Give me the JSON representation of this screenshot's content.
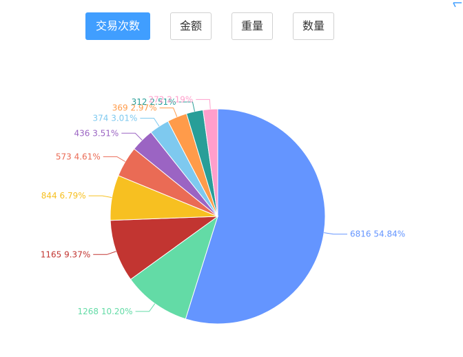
{
  "tabs": [
    {
      "label": "交易次数",
      "active": true
    },
    {
      "label": "金额",
      "active": false
    },
    {
      "label": "重量",
      "active": false
    },
    {
      "label": "数量",
      "active": false
    }
  ],
  "accent_color": "#409eff",
  "chart_data": {
    "type": "pie",
    "slices": [
      {
        "value": 6816,
        "percent": "54.84%",
        "color": "#6495ff"
      },
      {
        "value": 1268,
        "percent": "10.20%",
        "color": "#63dba6"
      },
      {
        "value": 1165,
        "percent": "9.37%",
        "color": "#c23531"
      },
      {
        "value": 844,
        "percent": "6.79%",
        "color": "#f7c021"
      },
      {
        "value": 573,
        "percent": "4.61%",
        "color": "#ea6b55"
      },
      {
        "value": 436,
        "percent": "3.51%",
        "color": "#9b64c3"
      },
      {
        "value": 374,
        "percent": "3.01%",
        "color": "#7ec9ef"
      },
      {
        "value": 369,
        "percent": "2.97%",
        "color": "#ff9b4a"
      },
      {
        "value": 312,
        "percent": "2.51%",
        "color": "#289e98"
      },
      {
        "value": 272,
        "percent": "2.19%",
        "color": "#ff9ecb"
      }
    ]
  }
}
